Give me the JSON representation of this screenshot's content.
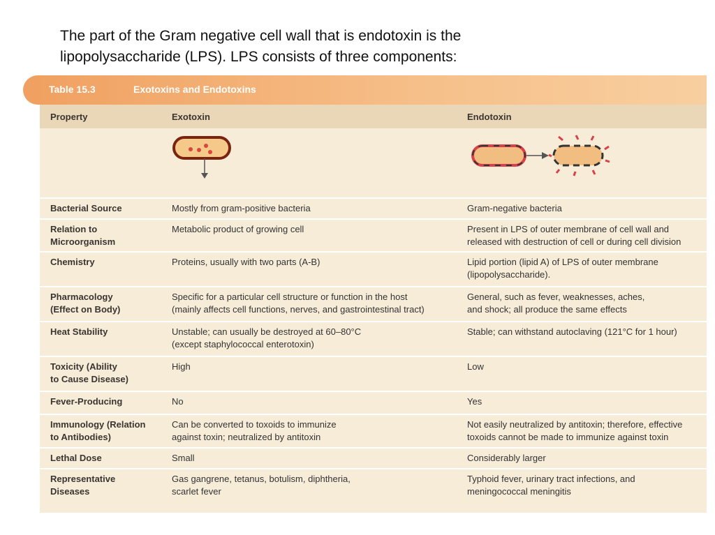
{
  "intro": [
    "The part of the Gram negative cell wall that is endotoxin is the",
    "lipopolysaccharide (LPS). LPS consists  of three components:"
  ],
  "table": {
    "number": "Table 15.3",
    "title": "Exotoxins and Endotoxins",
    "header": [
      "Property",
      "Exotoxin",
      "Endotoxin"
    ],
    "rows": [
      [
        [
          "Bacterial Source"
        ],
        [
          "Mostly from gram-positive bacteria"
        ],
        [
          "Gram-negative bacteria"
        ]
      ],
      [
        [
          "Relation to",
          "Microorganism"
        ],
        [
          "Metabolic product of growing cell"
        ],
        [
          "Present in LPS of outer membrane of cell wall and",
          "released with destruction of cell or during cell division"
        ]
      ],
      [
        [
          "Chemistry"
        ],
        [
          "Proteins, usually with two parts (A-B)"
        ],
        [
          "Lipid portion (lipid A) of LPS of outer membrane",
          "(lipopolysaccharide)."
        ]
      ],
      [
        [
          "Pharmacology",
          "(Effect on Body)"
        ],
        [
          "Specific for a particular cell structure or function in the host",
          "(mainly affects cell functions, nerves, and gastrointestinal tract)"
        ],
        [
          "General, such as fever, weaknesses, aches,",
          "and shock; all produce the same effects"
        ]
      ],
      [
        [
          "Heat Stability"
        ],
        [
          "Unstable; can usually be destroyed at 60–80°C",
          "(except staphylococcal enterotoxin)"
        ],
        [
          "Stable; can withstand autoclaving (121°C for 1 hour)"
        ]
      ],
      [
        [
          "Toxicity (Ability",
          "to Cause Disease)"
        ],
        [
          "High"
        ],
        [
          "Low"
        ]
      ],
      [
        [
          "Fever-Producing"
        ],
        [
          "No"
        ],
        [
          "Yes"
        ]
      ],
      [
        [
          "Immunology (Relation",
          "to Antibodies)"
        ],
        [
          "Can be converted to toxoids to immunize",
          "against toxin; neutralized by antitoxin"
        ],
        [
          "Not easily neutralized by antitoxin; therefore, effective",
          "toxoids cannot be made to immunize against toxin"
        ]
      ],
      [
        [
          "Lethal Dose"
        ],
        [
          "Small"
        ],
        [
          "Considerably larger"
        ]
      ],
      [
        [
          "Representative",
          "Diseases"
        ],
        [
          "Gas gangrene, tetanus, botulism, diphtheria,",
          "scarlet fever"
        ],
        [
          "Typhoid fever, urinary tract infections, and",
          "meningococcal meningitis"
        ]
      ]
    ]
  }
}
